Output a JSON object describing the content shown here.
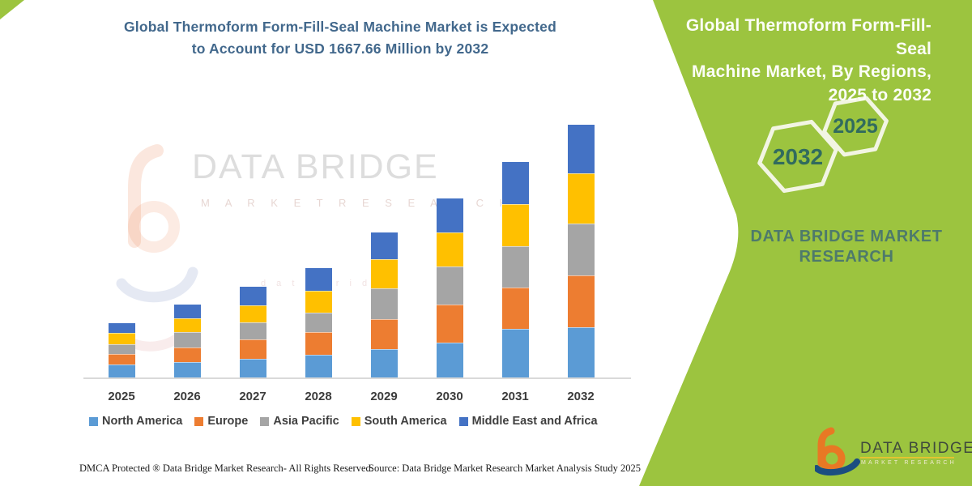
{
  "left": {
    "title_line1": "Global Thermoform Form-Fill-Seal Machine Market is Expected",
    "title_line2": "to Account for USD 1667.66 Million by 2032",
    "watermark": {
      "brand": "DATA BRIDGE",
      "sub": "M A R K E T   R E S E A R C H",
      "faint_line": "d a t a   b r i d g e"
    },
    "footer": {
      "dmca": "DMCA Protected ® Data Bridge Market Research-  All Rights Reserved.",
      "source": "Source: Data Bridge Market Research  Market Analysis Study 2025"
    }
  },
  "panel": {
    "bg_color": "#9CC43F",
    "heading_line1": "Global Thermoform Form-Fill-Seal",
    "heading_line2": "Machine Market, By Regions,",
    "heading_line3": "2025 to 2032",
    "hex_back": {
      "label": "2025"
    },
    "hex_front": {
      "label": "2032"
    },
    "brand_line1": "DATA BRIDGE MARKET",
    "brand_line2": "RESEARCH",
    "logo": {
      "name": "DATA BRIDGE",
      "sub": "MARKET RESEARCH"
    }
  },
  "chart_data": {
    "type": "bar",
    "stacked": true,
    "title": "Global Thermoform Form-Fill-Seal Machine Market is Expected to Account for USD 1667.66 Million by 2032",
    "unit": "USD Million",
    "categories": [
      "2025",
      "2026",
      "2027",
      "2028",
      "2029",
      "2030",
      "2031",
      "2032"
    ],
    "series": [
      {
        "name": "North America",
        "color": "#5B9BD5",
        "values": [
          86,
          102,
          123,
          150,
          187,
          230,
          321,
          332
        ]
      },
      {
        "name": "Europe",
        "color": "#ED7D31",
        "values": [
          70,
          91,
          128,
          150,
          198,
          251,
          273,
          342
        ]
      },
      {
        "name": "Asia Pacific",
        "color": "#A5A5A5",
        "values": [
          59,
          102,
          112,
          123,
          198,
          246,
          267,
          337
        ]
      },
      {
        "name": "South America",
        "color": "#FFC000",
        "values": [
          75,
          91,
          107,
          144,
          193,
          225,
          278,
          331
        ]
      },
      {
        "name": "Middle East and Africa",
        "color": "#4472C4",
        "values": [
          70,
          96,
          128,
          155,
          182,
          230,
          284,
          325.66
        ]
      }
    ],
    "totals": [
      360,
      482,
      598,
      722,
      958,
      1182,
      1423,
      1667.66
    ],
    "ylim": [
      0,
      1700
    ],
    "grid": false,
    "y_axis_visible": false,
    "legend_position": "bottom"
  }
}
